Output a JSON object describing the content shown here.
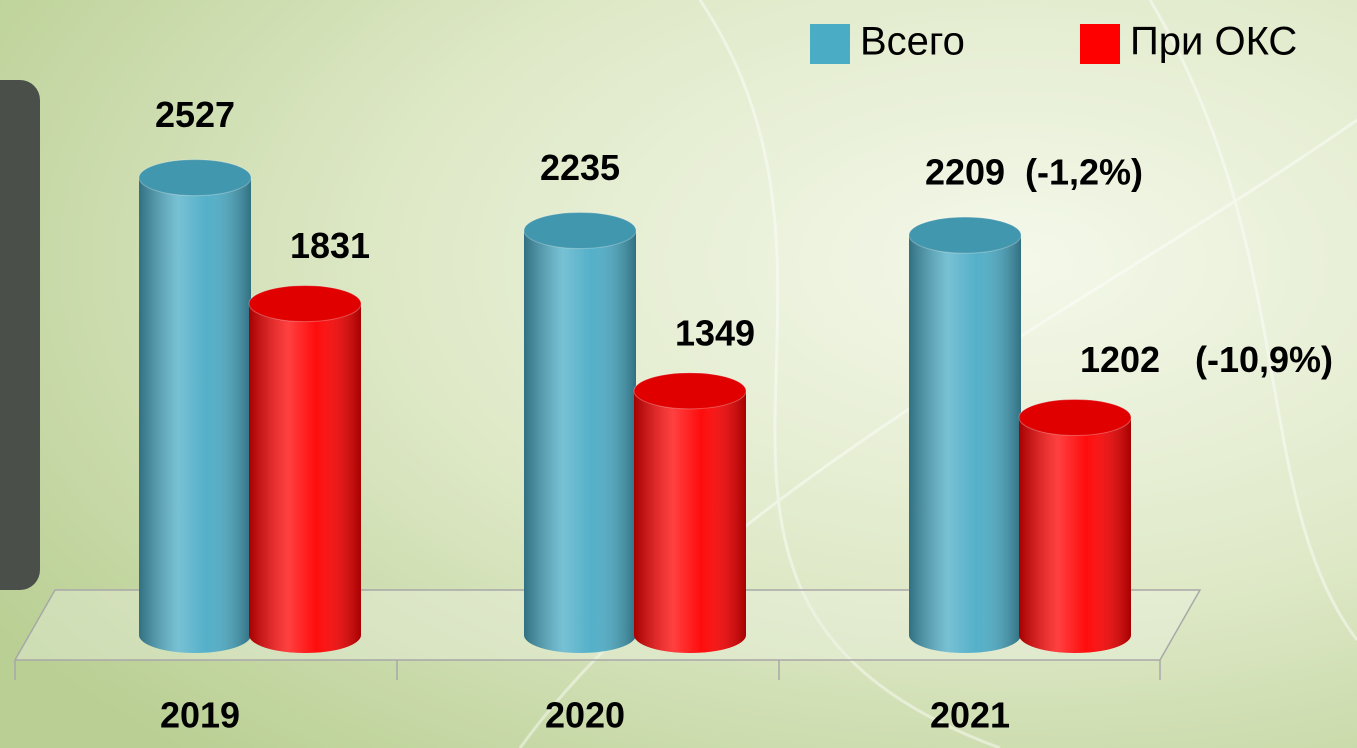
{
  "chart_data": {
    "type": "bar3d",
    "categories": [
      "2019",
      "2020",
      "2021"
    ],
    "series": [
      {
        "name": "Всего",
        "color": "#4bacc6",
        "values": [
          2527,
          2235,
          2209
        ]
      },
      {
        "name": "При ОКС",
        "color": "#ff0000",
        "values": [
          1831,
          1349,
          1202
        ]
      }
    ],
    "annotations": [
      "(-1,2%)",
      "(-10,9%)"
    ]
  }
}
